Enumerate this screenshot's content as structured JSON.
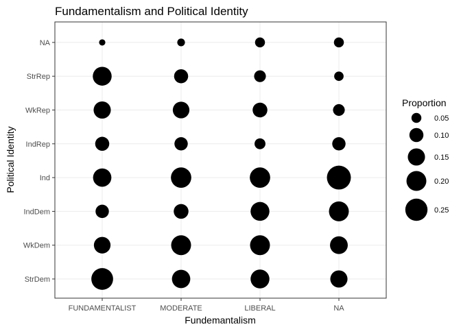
{
  "chart_data": {
    "type": "scatter",
    "title": "Fundamentalism and Political Identity",
    "xlabel": "Fundemantalism",
    "ylabel": "Political Identity",
    "x_categories": [
      "FUNDAMENTALIST",
      "MODERATE",
      "LIBERAL",
      "NA"
    ],
    "y_categories": [
      "StrDem",
      "WkDem",
      "IndDem",
      "Ind",
      "IndRep",
      "WkRep",
      "StrRep",
      "NA"
    ],
    "grid": true,
    "legend": {
      "title": "Proportion",
      "position": "right",
      "entries": [
        0.05,
        0.1,
        0.15,
        0.2,
        0.25
      ],
      "entry_labels": [
        "0.05",
        "0.10",
        "0.15",
        "0.20",
        "0.25"
      ]
    },
    "points": [
      {
        "x": "FUNDAMENTALIST",
        "y": "NA",
        "proportion": 0.02
      },
      {
        "x": "FUNDAMENTALIST",
        "y": "StrRep",
        "proportion": 0.18
      },
      {
        "x": "FUNDAMENTALIST",
        "y": "WkRep",
        "proportion": 0.15
      },
      {
        "x": "FUNDAMENTALIST",
        "y": "IndRep",
        "proportion": 0.1
      },
      {
        "x": "FUNDAMENTALIST",
        "y": "Ind",
        "proportion": 0.17
      },
      {
        "x": "FUNDAMENTALIST",
        "y": "IndDem",
        "proportion": 0.09
      },
      {
        "x": "FUNDAMENTALIST",
        "y": "WkDem",
        "proportion": 0.14
      },
      {
        "x": "FUNDAMENTALIST",
        "y": "StrDem",
        "proportion": 0.24
      },
      {
        "x": "MODERATE",
        "y": "NA",
        "proportion": 0.03
      },
      {
        "x": "MODERATE",
        "y": "StrRep",
        "proportion": 0.1
      },
      {
        "x": "MODERATE",
        "y": "WkRep",
        "proportion": 0.14
      },
      {
        "x": "MODERATE",
        "y": "IndRep",
        "proportion": 0.09
      },
      {
        "x": "MODERATE",
        "y": "Ind",
        "proportion": 0.21
      },
      {
        "x": "MODERATE",
        "y": "IndDem",
        "proportion": 0.11
      },
      {
        "x": "MODERATE",
        "y": "WkDem",
        "proportion": 0.2
      },
      {
        "x": "MODERATE",
        "y": "StrDem",
        "proportion": 0.17
      },
      {
        "x": "LIBERAL",
        "y": "NA",
        "proportion": 0.05
      },
      {
        "x": "LIBERAL",
        "y": "StrRep",
        "proportion": 0.07
      },
      {
        "x": "LIBERAL",
        "y": "WkRep",
        "proportion": 0.11
      },
      {
        "x": "LIBERAL",
        "y": "IndRep",
        "proportion": 0.06
      },
      {
        "x": "LIBERAL",
        "y": "Ind",
        "proportion": 0.21
      },
      {
        "x": "LIBERAL",
        "y": "IndDem",
        "proportion": 0.18
      },
      {
        "x": "LIBERAL",
        "y": "WkDem",
        "proportion": 0.2
      },
      {
        "x": "LIBERAL",
        "y": "StrDem",
        "proportion": 0.18
      },
      {
        "x": "NA",
        "y": "NA",
        "proportion": 0.05
      },
      {
        "x": "NA",
        "y": "StrRep",
        "proportion": 0.045
      },
      {
        "x": "NA",
        "y": "WkRep",
        "proportion": 0.07
      },
      {
        "x": "NA",
        "y": "IndRep",
        "proportion": 0.09
      },
      {
        "x": "NA",
        "y": "Ind",
        "proportion": 0.29
      },
      {
        "x": "NA",
        "y": "IndDem",
        "proportion": 0.2
      },
      {
        "x": "NA",
        "y": "WkDem",
        "proportion": 0.16
      },
      {
        "x": "NA",
        "y": "StrDem",
        "proportion": 0.15
      }
    ]
  }
}
